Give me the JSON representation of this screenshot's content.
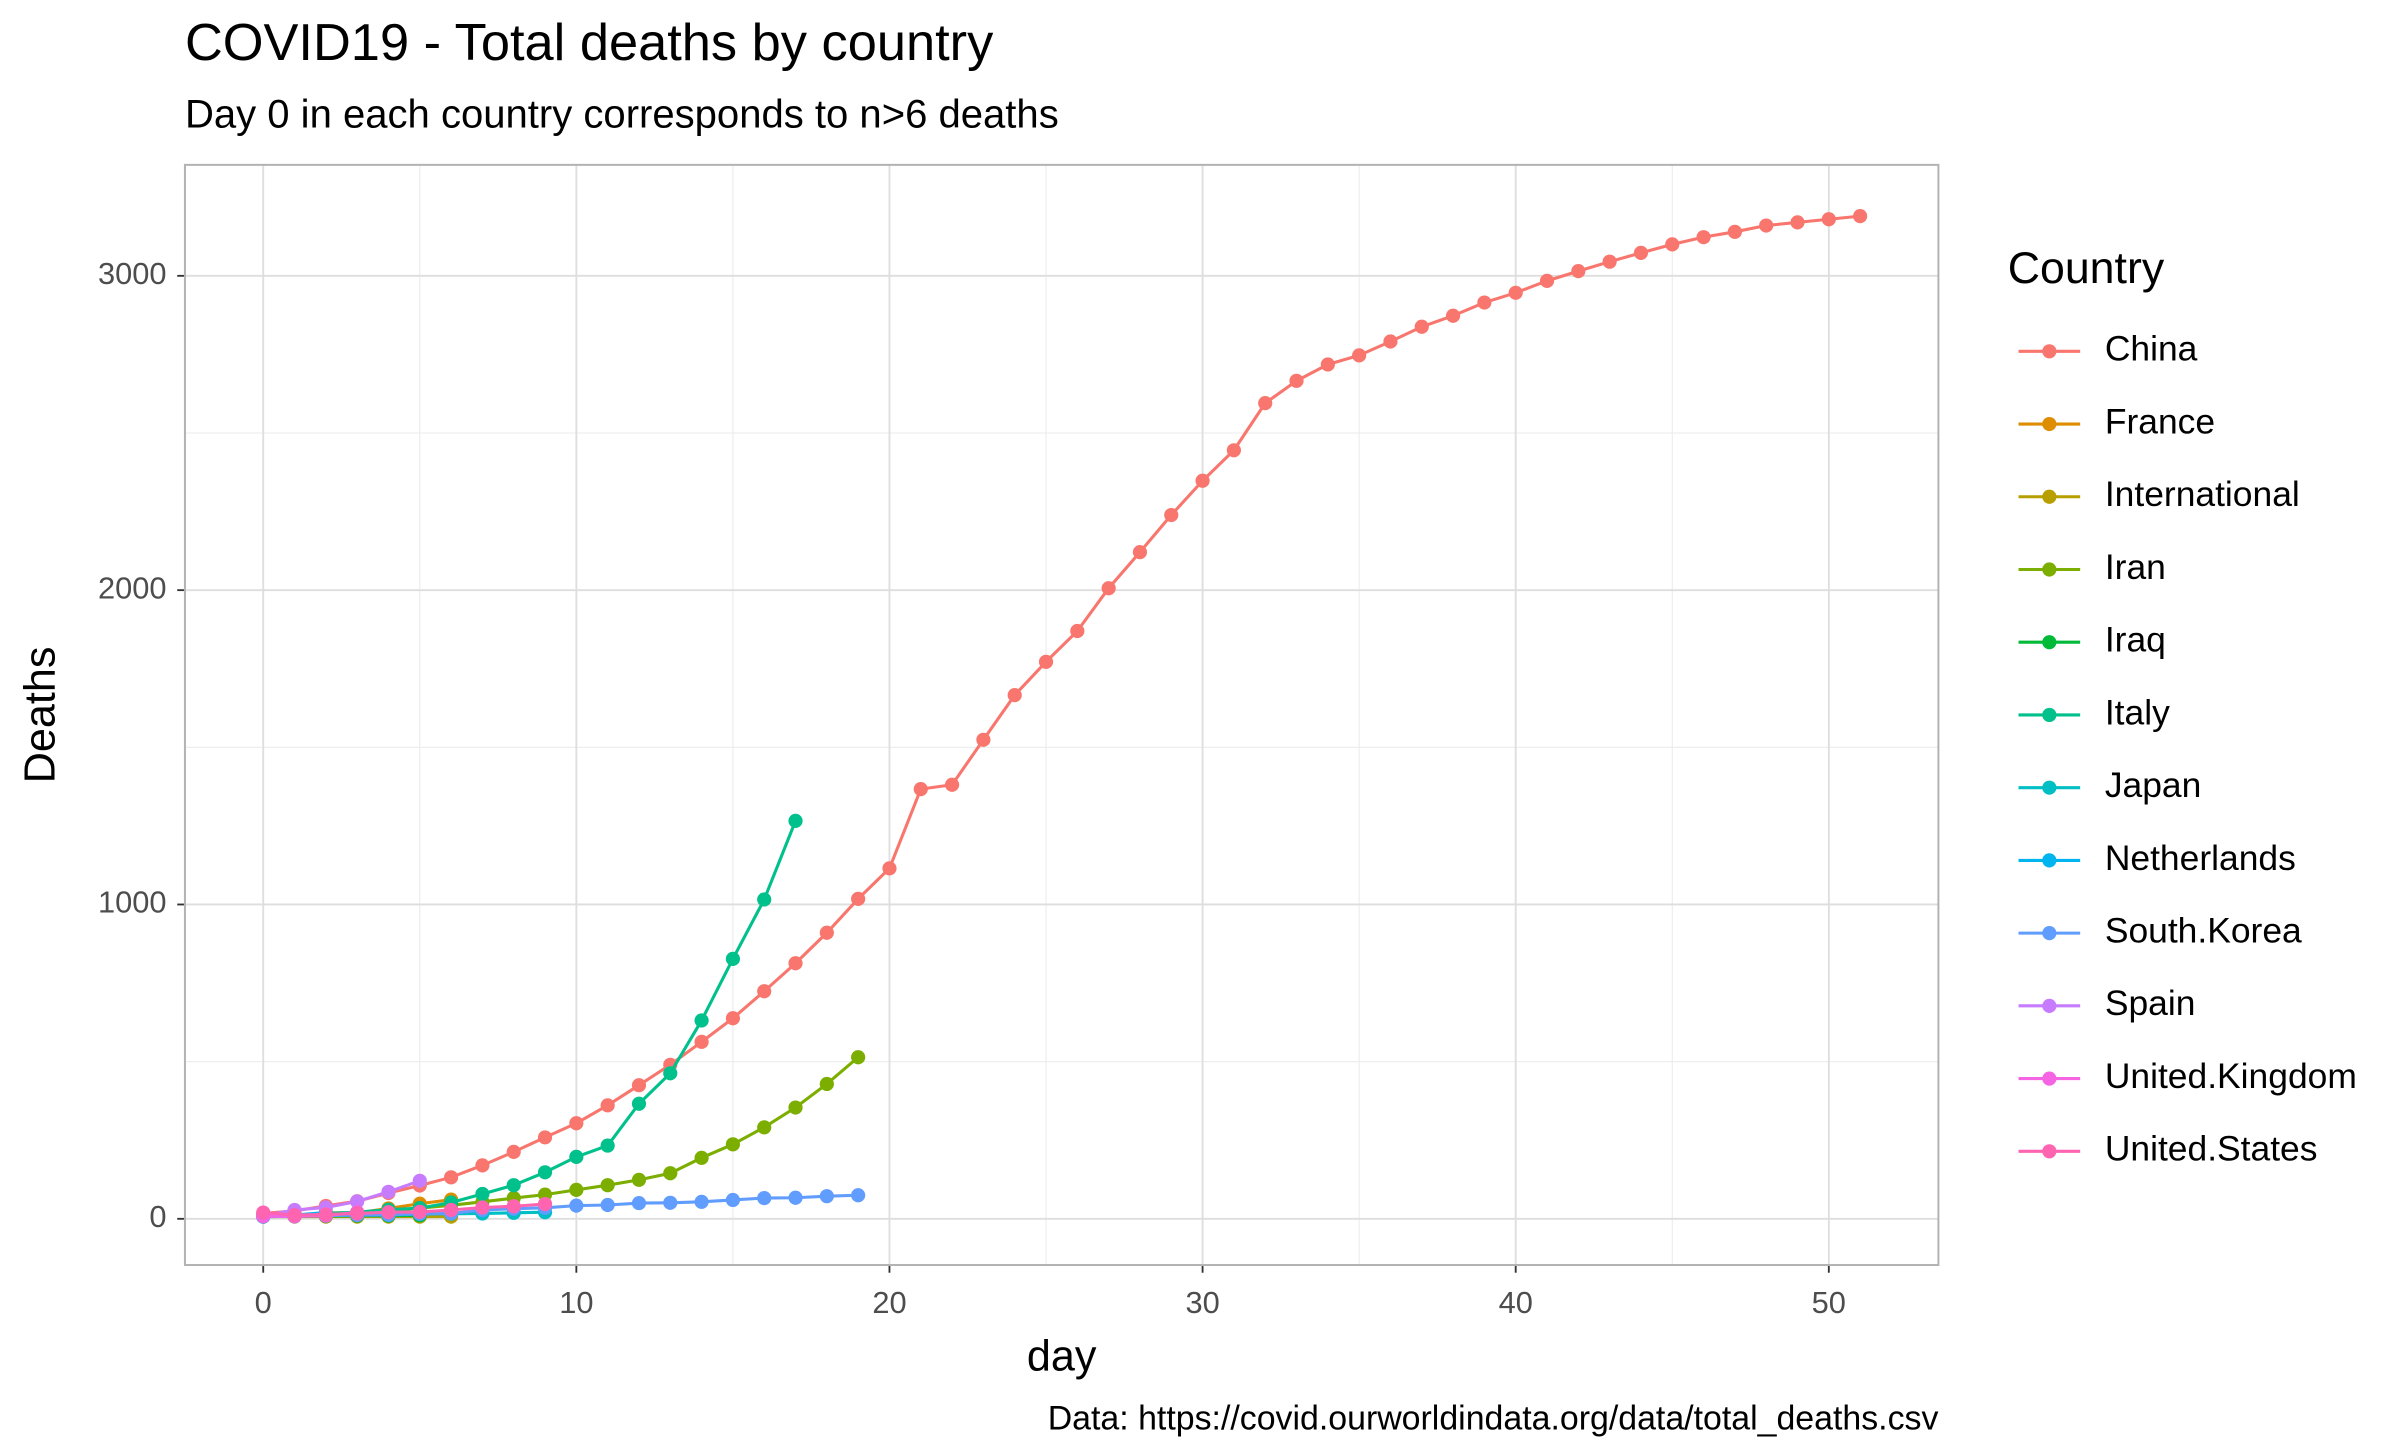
{
  "chart_data": {
    "type": "line",
    "title": "COVID19 - Total deaths by country",
    "subtitle": "Day 0 in each country corresponds to n>6 deaths",
    "x_label": "day",
    "y_label": "Deaths",
    "caption": "Data: https://covid.ourworldindata.org/data/total_deaths.csv",
    "legend_title": "Country",
    "legend_position": "right",
    "grid": true,
    "xlim": [
      -2.5,
      53.5
    ],
    "xticks": [
      0,
      10,
      20,
      30,
      40,
      50
    ],
    "ylim": [
      -147,
      3353
    ],
    "yticks": [
      0,
      1000,
      2000,
      3000
    ],
    "series": [
      {
        "name": "China",
        "color": "#F8766D",
        "x": [
          0,
          1,
          2,
          3,
          4,
          5,
          6,
          7,
          8,
          9,
          10,
          11,
          12,
          13,
          14,
          15,
          16,
          17,
          18,
          19,
          20,
          21,
          22,
          23,
          24,
          25,
          26,
          27,
          28,
          29,
          30,
          31,
          32,
          33,
          34,
          35,
          36,
          37,
          38,
          39,
          40,
          41,
          42,
          43,
          44,
          45,
          46,
          47,
          48,
          49,
          50,
          51
        ],
        "values": [
          17,
          25,
          41,
          56,
          82,
          106,
          132,
          170,
          213,
          259,
          304,
          361,
          425,
          490,
          563,
          638,
          724,
          813,
          910,
          1018,
          1115,
          1367,
          1381,
          1524,
          1666,
          1772,
          1870,
          2006,
          2121,
          2239,
          2348,
          2445,
          2595,
          2666,
          2718,
          2747,
          2791,
          2838,
          2873,
          2915,
          2946,
          2984,
          3015,
          3045,
          3073,
          3100,
          3123,
          3140,
          3160,
          3170,
          3180,
          3190
        ]
      },
      {
        "name": "France",
        "color": "#DE8C00",
        "x": [
          0,
          1,
          2,
          3,
          4,
          5,
          6
        ],
        "values": [
          9,
          11,
          19,
          19,
          33,
          48,
          61
        ]
      },
      {
        "name": "International",
        "color": "#B79F00",
        "x": [
          0,
          1,
          2,
          3,
          4,
          5,
          6
        ],
        "values": [
          7,
          7,
          7,
          7,
          7,
          7,
          7
        ]
      },
      {
        "name": "Iran",
        "color": "#7CAE00",
        "x": [
          0,
          1,
          2,
          3,
          4,
          5,
          6,
          7,
          8,
          9,
          10,
          11,
          12,
          13,
          14,
          15,
          16,
          17,
          18,
          19
        ],
        "values": [
          8,
          12,
          16,
          19,
          26,
          34,
          43,
          54,
          66,
          77,
          92,
          107,
          124,
          145,
          194,
          237,
          291,
          354,
          429,
          514
        ]
      },
      {
        "name": "Iraq",
        "color": "#00BA38",
        "x": [
          0,
          1,
          2,
          3,
          4,
          5
        ],
        "values": [
          7,
          8,
          9,
          10,
          10,
          11
        ]
      },
      {
        "name": "Italy",
        "color": "#00C08B",
        "x": [
          0,
          1,
          2,
          3,
          4,
          5,
          6,
          7,
          8,
          9,
          10,
          11,
          12,
          13,
          14,
          15,
          16,
          17
        ],
        "values": [
          10,
          12,
          17,
          21,
          29,
          34,
          52,
          79,
          107,
          148,
          197,
          233,
          366,
          463,
          631,
          827,
          1016,
          1266
        ]
      },
      {
        "name": "Japan",
        "color": "#00BFC4",
        "x": [
          0,
          1,
          2,
          3,
          4,
          5,
          6,
          7,
          8,
          9
        ],
        "values": [
          7,
          9,
          10,
          12,
          12,
          15,
          16,
          17,
          19,
          21
        ]
      },
      {
        "name": "Netherlands",
        "color": "#00B4F0",
        "x": [
          0,
          1,
          2
        ],
        "values": [
          10,
          12,
          20
        ]
      },
      {
        "name": "South.Korea",
        "color": "#619CFF",
        "x": [
          0,
          1,
          2,
          3,
          4,
          5,
          6,
          7,
          8,
          9,
          10,
          11,
          12,
          13,
          14,
          15,
          16,
          17,
          18,
          19
        ],
        "values": [
          7,
          8,
          11,
          12,
          13,
          16,
          17,
          28,
          32,
          35,
          42,
          44,
          50,
          51,
          54,
          60,
          66,
          67,
          72,
          75
        ]
      },
      {
        "name": "Spain",
        "color": "#C77CFF",
        "x": [
          0,
          1,
          2,
          3,
          4,
          5
        ],
        "values": [
          10,
          28,
          36,
          55,
          86,
          121
        ]
      },
      {
        "name": "United.Kingdom",
        "color": "#F564E3",
        "x": [
          0,
          1,
          2,
          3
        ],
        "values": [
          8,
          8,
          10,
          21
        ]
      },
      {
        "name": "United.States",
        "color": "#FF64B0",
        "x": [
          0,
          1,
          2,
          3,
          4,
          5,
          6,
          7,
          8,
          9
        ],
        "values": [
          20,
          12,
          14,
          17,
          21,
          22,
          28,
          36,
          40,
          47
        ]
      }
    ]
  }
}
